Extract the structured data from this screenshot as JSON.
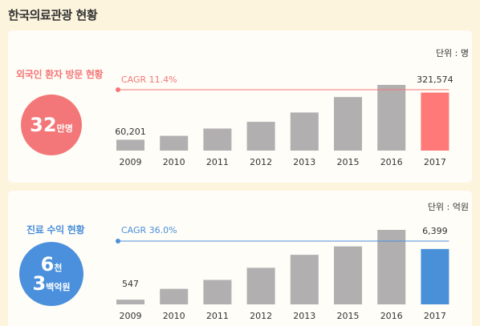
{
  "page_title": "한국의료관광 현황",
  "chart_data": [
    {
      "type": "bar",
      "section_title": "외국인 환자 방문 현황",
      "unit_label": "단위 : 명",
      "circle": {
        "value": "32",
        "unit": "만명"
      },
      "cagr_label": "CAGR 11.4%",
      "categories": [
        "2009",
        "2010",
        "2011",
        "2012",
        "2013",
        "2015",
        "2016",
        "2017"
      ],
      "values": [
        60201,
        81789,
        122297,
        159464,
        211218,
        296889,
        364189,
        321574
      ],
      "value_labels": {
        "first": "60,201",
        "last": "321,574"
      },
      "bar_color": "#b1afb0",
      "highlight_color": "#fe7978",
      "accent_color": "#f37778"
    },
    {
      "type": "bar",
      "section_title": "진료 수익 현황",
      "unit_label": "단위 : 억원",
      "circle": {
        "line1_value": "6",
        "line1_unit": "천",
        "line2_value": "3",
        "line2_unit": "백억원"
      },
      "cagr_label": "CAGR 36.0%",
      "categories": [
        "2009",
        "2010",
        "2011",
        "2012",
        "2013",
        "2015",
        "2016",
        "2017"
      ],
      "values": [
        547,
        1793,
        2825,
        4228,
        5728,
        6694,
        8606,
        6399
      ],
      "value_labels": {
        "first": "547",
        "last": "6,399"
      },
      "bar_color": "#b1afb0",
      "highlight_color": "#4a90d9",
      "accent_color": "#4b90dc"
    }
  ]
}
